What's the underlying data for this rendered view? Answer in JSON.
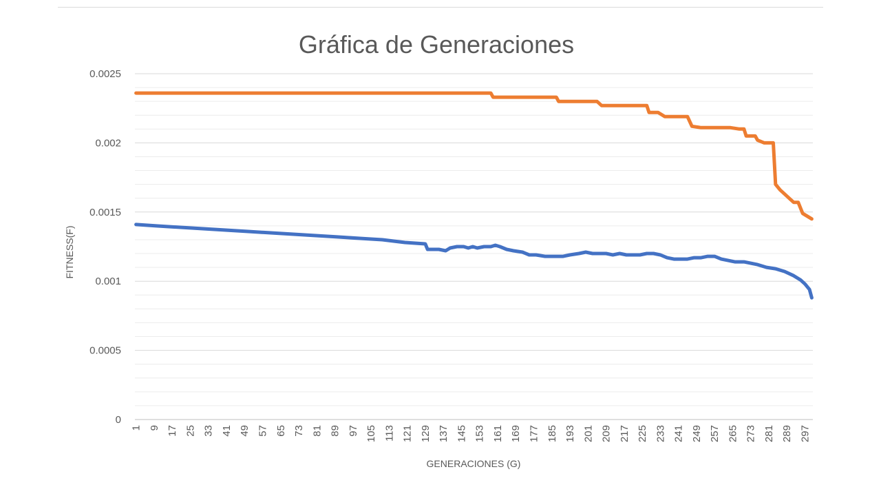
{
  "chart_data": {
    "type": "line",
    "title": "Gráfica de Generaciones",
    "xlabel": "GENERACIONES (G)",
    "ylabel": "FITNESS(F)",
    "ylim": [
      0,
      0.0025
    ],
    "yticks": [
      "0",
      "0.0005",
      "0.001",
      "0.0015",
      "0.002",
      "0.0025"
    ],
    "x_range": [
      1,
      300
    ],
    "xticks": [
      "1",
      "9",
      "17",
      "25",
      "33",
      "41",
      "49",
      "57",
      "65",
      "73",
      "81",
      "89",
      "97",
      "105",
      "113",
      "121",
      "129",
      "137",
      "145",
      "153",
      "161",
      "169",
      "177",
      "185",
      "193",
      "201",
      "209",
      "217",
      "225",
      "233",
      "241",
      "249",
      "257",
      "265",
      "273",
      "281",
      "289",
      "297"
    ],
    "grid": true,
    "legend": "none",
    "series": [
      {
        "color": "#ed7d31",
        "points": [
          [
            1,
            0.00236
          ],
          [
            158,
            0.00236
          ],
          [
            159,
            0.00233
          ],
          [
            187,
            0.00233
          ],
          [
            188,
            0.0023
          ],
          [
            205,
            0.0023
          ],
          [
            207,
            0.00227
          ],
          [
            227,
            0.00227
          ],
          [
            228,
            0.00222
          ],
          [
            232,
            0.00222
          ],
          [
            235,
            0.00219
          ],
          [
            245,
            0.00219
          ],
          [
            247,
            0.00212
          ],
          [
            251,
            0.00211
          ],
          [
            264,
            0.00211
          ],
          [
            268,
            0.0021
          ],
          [
            270,
            0.0021
          ],
          [
            271,
            0.00205
          ],
          [
            275,
            0.00205
          ],
          [
            276,
            0.00202
          ],
          [
            279,
            0.002
          ],
          [
            283,
            0.002
          ],
          [
            284,
            0.0017
          ],
          [
            286,
            0.00166
          ],
          [
            288,
            0.00163
          ],
          [
            290,
            0.0016
          ],
          [
            292,
            0.00157
          ],
          [
            294,
            0.00157
          ],
          [
            296,
            0.00149
          ],
          [
            298,
            0.00147
          ],
          [
            300,
            0.00145
          ]
        ]
      },
      {
        "color": "#4472c4",
        "points": [
          [
            1,
            0.00141
          ],
          [
            10,
            0.0014
          ],
          [
            20,
            0.00139
          ],
          [
            30,
            0.00138
          ],
          [
            40,
            0.00137
          ],
          [
            50,
            0.00136
          ],
          [
            60,
            0.00135
          ],
          [
            70,
            0.00134
          ],
          [
            80,
            0.00133
          ],
          [
            90,
            0.00132
          ],
          [
            100,
            0.00131
          ],
          [
            110,
            0.0013
          ],
          [
            120,
            0.00128
          ],
          [
            129,
            0.00127
          ],
          [
            130,
            0.00123
          ],
          [
            135,
            0.00123
          ],
          [
            138,
            0.00122
          ],
          [
            140,
            0.00124
          ],
          [
            143,
            0.00125
          ],
          [
            146,
            0.00125
          ],
          [
            148,
            0.00124
          ],
          [
            150,
            0.00125
          ],
          [
            152,
            0.00124
          ],
          [
            155,
            0.00125
          ],
          [
            158,
            0.00125
          ],
          [
            160,
            0.00126
          ],
          [
            162,
            0.00125
          ],
          [
            165,
            0.00123
          ],
          [
            168,
            0.00122
          ],
          [
            172,
            0.00121
          ],
          [
            175,
            0.00119
          ],
          [
            178,
            0.00119
          ],
          [
            182,
            0.00118
          ],
          [
            186,
            0.00118
          ],
          [
            190,
            0.00118
          ],
          [
            193,
            0.00119
          ],
          [
            197,
            0.0012
          ],
          [
            200,
            0.00121
          ],
          [
            203,
            0.0012
          ],
          [
            206,
            0.0012
          ],
          [
            209,
            0.0012
          ],
          [
            212,
            0.00119
          ],
          [
            215,
            0.0012
          ],
          [
            218,
            0.00119
          ],
          [
            221,
            0.00119
          ],
          [
            224,
            0.00119
          ],
          [
            227,
            0.0012
          ],
          [
            230,
            0.0012
          ],
          [
            233,
            0.00119
          ],
          [
            236,
            0.00117
          ],
          [
            239,
            0.00116
          ],
          [
            242,
            0.00116
          ],
          [
            245,
            0.00116
          ],
          [
            248,
            0.00117
          ],
          [
            251,
            0.00117
          ],
          [
            254,
            0.00118
          ],
          [
            257,
            0.00118
          ],
          [
            260,
            0.00116
          ],
          [
            263,
            0.00115
          ],
          [
            266,
            0.00114
          ],
          [
            270,
            0.00114
          ],
          [
            273,
            0.00113
          ],
          [
            276,
            0.00112
          ],
          [
            280,
            0.0011
          ],
          [
            284,
            0.00109
          ],
          [
            288,
            0.00107
          ],
          [
            292,
            0.00104
          ],
          [
            295,
            0.00101
          ],
          [
            297,
            0.00098
          ],
          [
            299,
            0.00094
          ],
          [
            300,
            0.00088
          ]
        ]
      }
    ]
  }
}
